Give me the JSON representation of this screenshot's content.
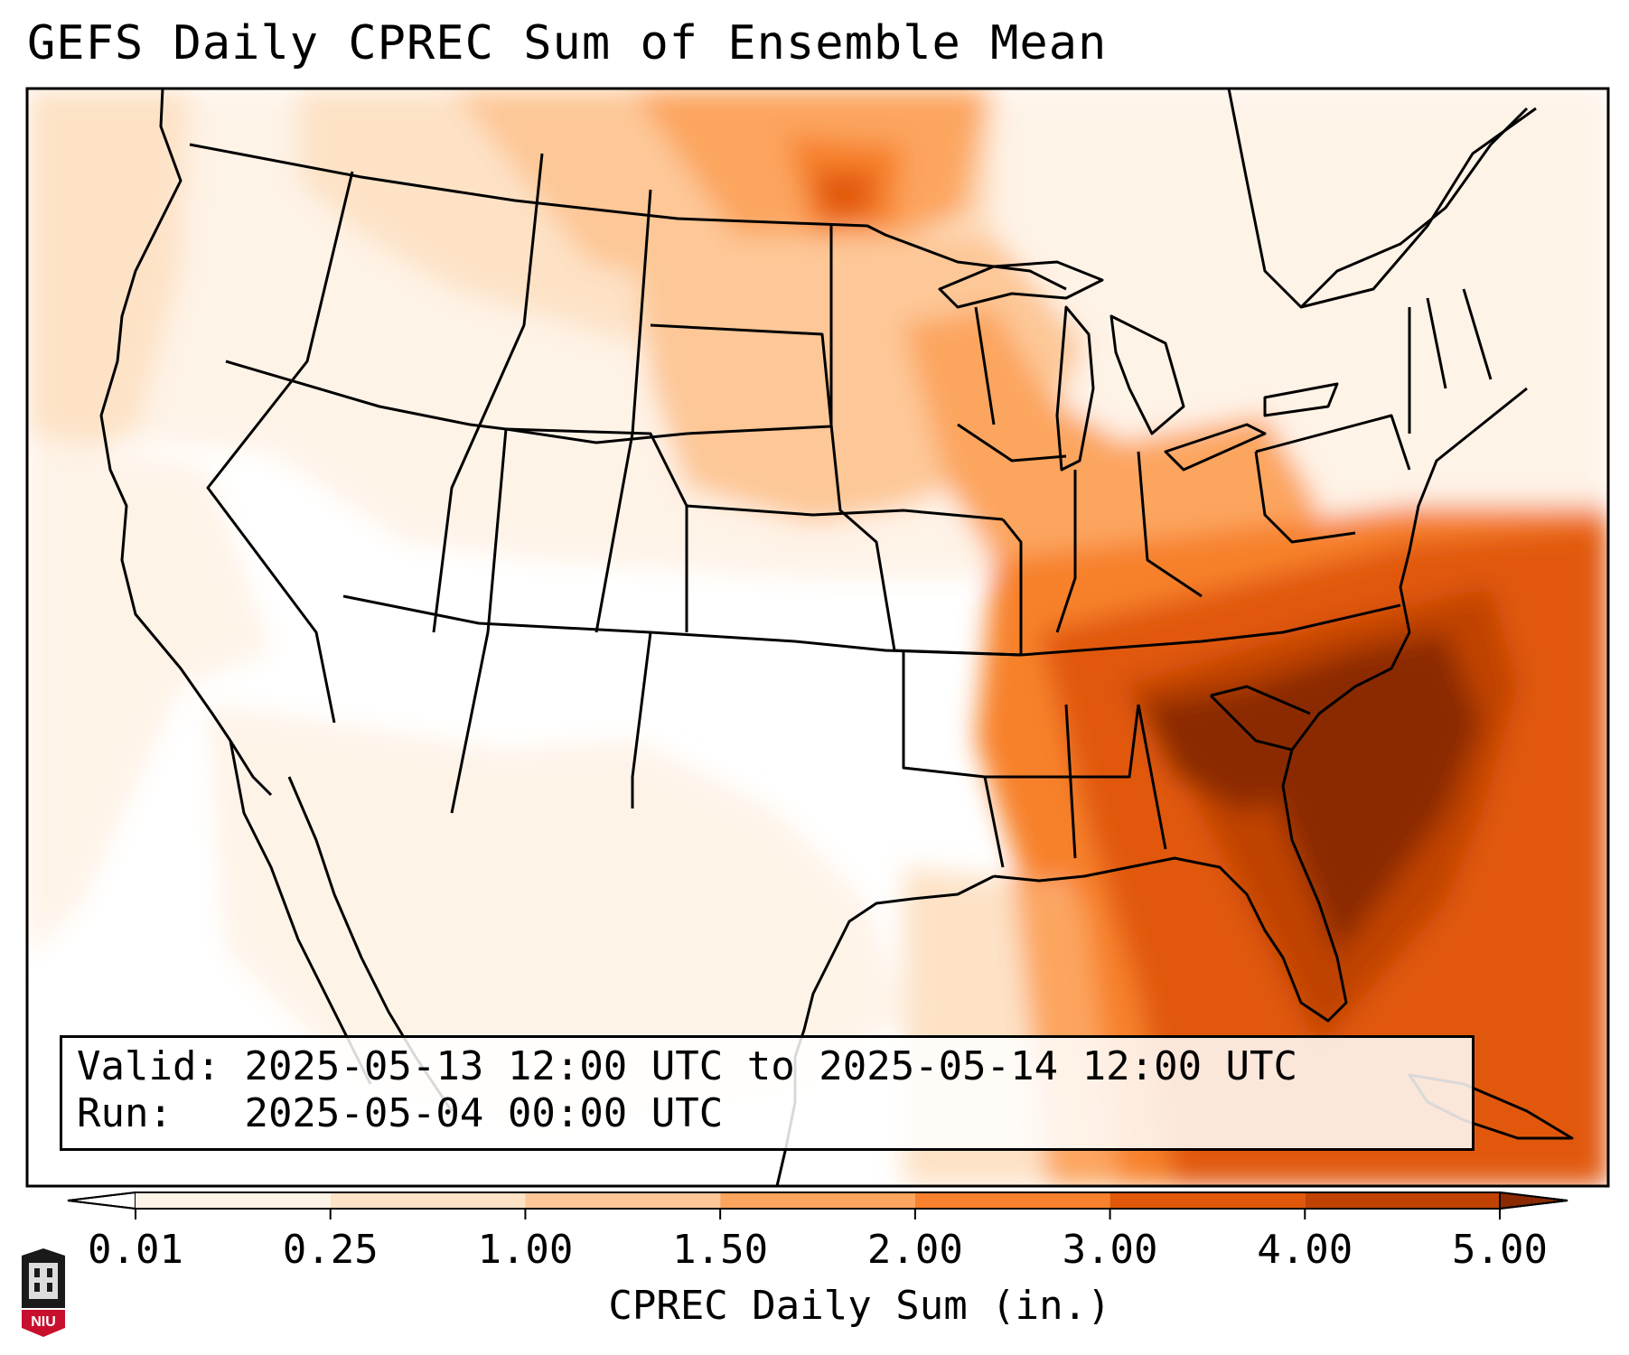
{
  "title": "GEFS Daily CPREC Sum of Ensemble Mean",
  "info": {
    "valid_label": "Valid:",
    "valid_value": "2025-05-13 12:00 UTC to 2025-05-14 12:00 UTC",
    "run_label": "Run:",
    "run_value": "2025-05-04 00:00 UTC"
  },
  "colorbar": {
    "title": "CPREC Daily Sum (in.)",
    "ticks": [
      "0.01",
      "0.25",
      "1.00",
      "1.50",
      "2.00",
      "3.00",
      "4.00",
      "5.00"
    ],
    "colors": [
      "#fef3e7",
      "#fde2c6",
      "#fdc797",
      "#fca55f",
      "#f7812c",
      "#e1580a",
      "#c04304"
    ],
    "under_color": "#ffffff",
    "over_color": "#8b2a02"
  },
  "logo_text": "NIU",
  "map": {
    "region": "Contiguous United States",
    "max_precip_area": "Southeast US / Carolinas / Georgia / Florida Atlantic coast"
  }
}
